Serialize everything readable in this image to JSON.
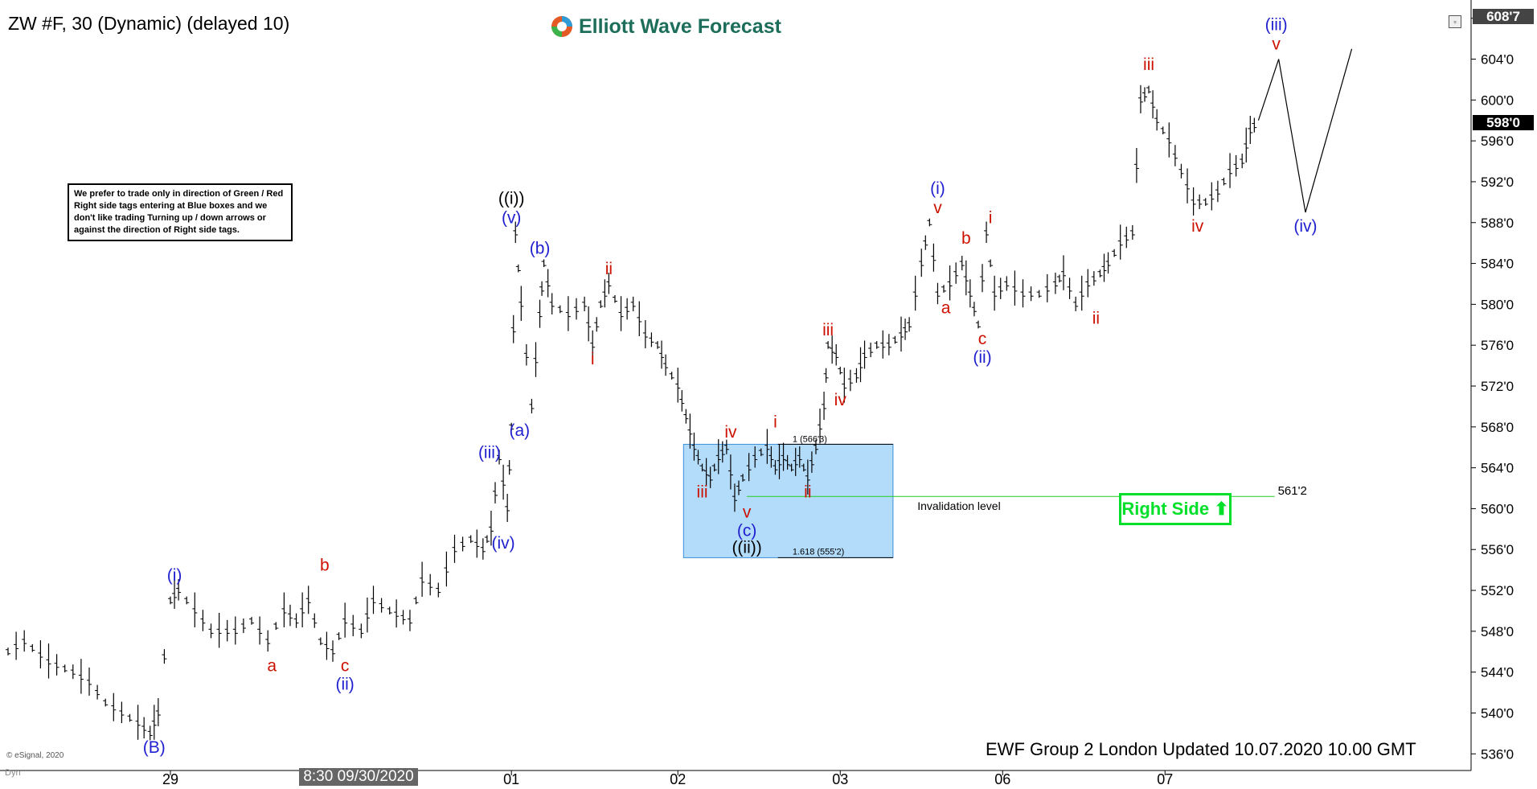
{
  "header": {
    "title": "ZW #F, 30 (Dynamic) (delayed 10)",
    "logo_text": "Elliott Wave Forecast",
    "note": "We prefer to trade only in direction of Green / Red Right side tags entering at Blue boxes and we don't like trading Turning up / down arrows or against the direction of Right side tags."
  },
  "footer": {
    "updated": "EWF Group 2 London Updated 10.07.2020 10.00 GMT",
    "copyright": "© eSignal, 2020",
    "dyn": "Dyn",
    "x_cursor_label": "8:30 09/30/2020"
  },
  "price_tags": {
    "current": "598'0",
    "top": "608'7"
  },
  "right_side_tag": {
    "label": "Right Side",
    "arrow": "⬆",
    "color": "#00e02a"
  },
  "chart_data": {
    "type": "line",
    "x": [
      "29",
      "8:30 09/30/2020",
      "01",
      "02",
      "03",
      "06",
      "07"
    ],
    "ylim": [
      535,
      609
    ],
    "yticks": [
      "536'0",
      "540'0",
      "544'0",
      "548'0",
      "552'0",
      "556'0",
      "560'0",
      "564'0",
      "568'0",
      "572'0",
      "576'0",
      "580'0",
      "584'0",
      "588'0",
      "592'0",
      "596'0",
      "600'0",
      "604'0",
      "608'0"
    ],
    "price_path": [
      [
        0.0,
        546
      ],
      [
        0.2,
        547
      ],
      [
        0.5,
        545
      ],
      [
        0.8,
        544
      ],
      [
        1.0,
        543
      ],
      [
        1.2,
        541
      ],
      [
        1.4,
        540
      ],
      [
        1.6,
        539
      ],
      [
        1.75,
        538
      ],
      [
        1.85,
        540
      ],
      [
        2.0,
        551
      ],
      [
        2.1,
        552
      ],
      [
        2.3,
        550
      ],
      [
        2.5,
        548
      ],
      [
        2.8,
        548
      ],
      [
        3.0,
        549
      ],
      [
        3.2,
        547
      ],
      [
        3.4,
        550
      ],
      [
        3.55,
        549
      ],
      [
        3.7,
        551
      ],
      [
        3.85,
        547
      ],
      [
        4.0,
        546
      ],
      [
        4.15,
        549
      ],
      [
        4.35,
        548
      ],
      [
        4.5,
        551
      ],
      [
        4.7,
        550
      ],
      [
        4.95,
        549
      ],
      [
        5.1,
        553
      ],
      [
        5.3,
        552
      ],
      [
        5.5,
        556
      ],
      [
        5.7,
        557
      ],
      [
        5.85,
        556
      ],
      [
        5.95,
        558
      ],
      [
        6.05,
        565
      ],
      [
        6.15,
        560
      ],
      [
        6.2,
        568
      ],
      [
        6.25,
        587
      ],
      [
        6.32,
        580
      ],
      [
        6.45,
        570
      ],
      [
        6.55,
        579
      ],
      [
        6.6,
        584
      ],
      [
        6.7,
        580
      ],
      [
        6.9,
        579
      ],
      [
        7.1,
        580
      ],
      [
        7.2,
        576
      ],
      [
        7.3,
        580
      ],
      [
        7.4,
        582
      ],
      [
        7.55,
        579
      ],
      [
        7.7,
        580
      ],
      [
        7.85,
        577
      ],
      [
        8.0,
        576
      ],
      [
        8.1,
        574
      ],
      [
        8.25,
        572
      ],
      [
        8.35,
        569
      ],
      [
        8.45,
        566
      ],
      [
        8.55,
        564
      ],
      [
        8.65,
        563
      ],
      [
        8.75,
        565
      ],
      [
        8.85,
        566
      ],
      [
        8.95,
        561
      ],
      [
        9.05,
        563
      ],
      [
        9.2,
        565
      ],
      [
        9.35,
        566
      ],
      [
        9.45,
        564
      ],
      [
        9.55,
        565
      ],
      [
        9.65,
        564
      ],
      [
        9.75,
        565
      ],
      [
        9.85,
        563
      ],
      [
        9.95,
        566
      ],
      [
        10.05,
        570
      ],
      [
        10.1,
        576
      ],
      [
        10.2,
        575
      ],
      [
        10.3,
        572
      ],
      [
        10.45,
        573
      ],
      [
        10.55,
        575
      ],
      [
        10.7,
        576
      ],
      [
        10.85,
        576
      ],
      [
        11.0,
        577
      ],
      [
        11.1,
        578
      ],
      [
        11.25,
        584
      ],
      [
        11.35,
        588
      ],
      [
        11.45,
        581
      ],
      [
        11.6,
        582
      ],
      [
        11.75,
        584
      ],
      [
        11.85,
        581
      ],
      [
        11.95,
        578
      ],
      [
        12.05,
        587
      ],
      [
        12.15,
        581
      ],
      [
        12.3,
        582
      ],
      [
        12.5,
        581
      ],
      [
        12.7,
        581
      ],
      [
        12.9,
        582
      ],
      [
        13.0,
        583
      ],
      [
        13.15,
        580
      ],
      [
        13.3,
        582
      ],
      [
        13.45,
        583
      ],
      [
        13.55,
        584
      ],
      [
        13.7,
        586
      ],
      [
        13.85,
        587
      ],
      [
        13.95,
        600
      ],
      [
        14.05,
        601
      ],
      [
        14.15,
        598
      ],
      [
        14.3,
        596
      ],
      [
        14.45,
        593
      ],
      [
        14.6,
        590
      ],
      [
        14.75,
        590
      ],
      [
        14.9,
        591
      ],
      [
        15.05,
        593
      ],
      [
        15.2,
        594
      ],
      [
        15.3,
        597
      ],
      [
        15.4,
        598
      ]
    ],
    "projection": [
      [
        15.4,
        598
      ],
      [
        15.65,
        604
      ],
      [
        15.98,
        589
      ],
      [
        16.55,
        605
      ]
    ],
    "wave_labels": [
      {
        "text": "(B)",
        "x": 1.8,
        "y": 538,
        "color": "#1f1fcf",
        "pos": "below"
      },
      {
        "text": "(i)",
        "x": 2.05,
        "y": 552,
        "color": "#1f1fcf",
        "pos": "above"
      },
      {
        "text": "a",
        "x": 3.25,
        "y": 546,
        "color": "#cc1100",
        "pos": "below"
      },
      {
        "text": "b",
        "x": 3.9,
        "y": 553,
        "color": "#cc1100",
        "pos": "above"
      },
      {
        "text": "c",
        "x": 4.15,
        "y": 546,
        "color": "#cc1100",
        "pos": "below"
      },
      {
        "text": "(ii)",
        "x": 4.15,
        "y": 546,
        "color": "#1f1fcf",
        "pos": "below2"
      },
      {
        "text": "(iii)",
        "x": 5.93,
        "y": 564,
        "color": "#1f1fcf",
        "pos": "above"
      },
      {
        "text": "(iv)",
        "x": 6.1,
        "y": 558,
        "color": "#1f1fcf",
        "pos": "below"
      },
      {
        "text": "(v)",
        "x": 6.2,
        "y": 587,
        "color": "#1f1fcf",
        "pos": "above"
      },
      {
        "text": "((i))",
        "x": 6.2,
        "y": 587,
        "color": "#000",
        "pos": "above2"
      },
      {
        "text": "(a)",
        "x": 6.3,
        "y": 569,
        "color": "#1f1fcf",
        "pos": "below"
      },
      {
        "text": "(b)",
        "x": 6.55,
        "y": 584,
        "color": "#1f1fcf",
        "pos": "above"
      },
      {
        "text": "i",
        "x": 7.2,
        "y": 576,
        "color": "#cc1100",
        "pos": "below"
      },
      {
        "text": "ii",
        "x": 7.4,
        "y": 582,
        "color": "#cc1100",
        "pos": "above"
      },
      {
        "text": "iii",
        "x": 8.55,
        "y": 563,
        "color": "#cc1100",
        "pos": "below"
      },
      {
        "text": "iv",
        "x": 8.9,
        "y": 566,
        "color": "#cc1100",
        "pos": "above"
      },
      {
        "text": "v",
        "x": 9.1,
        "y": 561,
        "color": "#cc1100",
        "pos": "below"
      },
      {
        "text": "(c)",
        "x": 9.1,
        "y": 561,
        "color": "#1f1fcf",
        "pos": "below2"
      },
      {
        "text": "((ii))",
        "x": 9.1,
        "y": 561,
        "color": "#000",
        "pos": "below3"
      },
      {
        "text": "i",
        "x": 9.45,
        "y": 567,
        "color": "#cc1100",
        "pos": "above"
      },
      {
        "text": "ii",
        "x": 9.85,
        "y": 563,
        "color": "#cc1100",
        "pos": "below"
      },
      {
        "text": "iii",
        "x": 10.1,
        "y": 576,
        "color": "#cc1100",
        "pos": "above"
      },
      {
        "text": "iv",
        "x": 10.25,
        "y": 572,
        "color": "#cc1100",
        "pos": "below"
      },
      {
        "text": "v",
        "x": 11.45,
        "y": 588,
        "color": "#cc1100",
        "pos": "above"
      },
      {
        "text": "(i)",
        "x": 11.45,
        "y": 588,
        "color": "#1f1fcf",
        "pos": "above2"
      },
      {
        "text": "a",
        "x": 11.55,
        "y": 581,
        "color": "#cc1100",
        "pos": "below"
      },
      {
        "text": "b",
        "x": 11.8,
        "y": 585,
        "color": "#cc1100",
        "pos": "above"
      },
      {
        "text": "c",
        "x": 12.0,
        "y": 578,
        "color": "#cc1100",
        "pos": "below"
      },
      {
        "text": "(ii)",
        "x": 12.0,
        "y": 578,
        "color": "#1f1fcf",
        "pos": "below2"
      },
      {
        "text": "i",
        "x": 12.1,
        "y": 587,
        "color": "#cc1100",
        "pos": "above"
      },
      {
        "text": "ii",
        "x": 13.4,
        "y": 580,
        "color": "#cc1100",
        "pos": "below"
      },
      {
        "text": "iii",
        "x": 14.05,
        "y": 602,
        "color": "#cc1100",
        "pos": "above"
      },
      {
        "text": "iv",
        "x": 14.65,
        "y": 589,
        "color": "#cc1100",
        "pos": "below"
      },
      {
        "text": "v",
        "x": 15.62,
        "y": 604,
        "color": "#cc1100",
        "pos": "above"
      },
      {
        "text": "(iii)",
        "x": 15.62,
        "y": 604,
        "color": "#1f1fcf",
        "pos": "above2"
      },
      {
        "text": "(iv)",
        "x": 15.98,
        "y": 589,
        "color": "#1f1fcf",
        "pos": "below"
      }
    ],
    "blue_box": {
      "x_from": 8.32,
      "x_to": 10.9,
      "y_top": 566.3,
      "y_bottom": 555.2,
      "label_top": "1 (566'3)",
      "label_bottom": "1.618 (555'2)"
    },
    "invalidation": {
      "x_from": 9.1,
      "x_to": 15.6,
      "y": 561.2,
      "label": "Invalidation level",
      "value": "561'2",
      "color": "#22cc22"
    },
    "colors": {
      "wave_blue": "#1f1fcf",
      "wave_red": "#cc1100",
      "box_fill": "#b3dcfb",
      "box_border": "#3a8fd8",
      "candle": "#000"
    }
  }
}
